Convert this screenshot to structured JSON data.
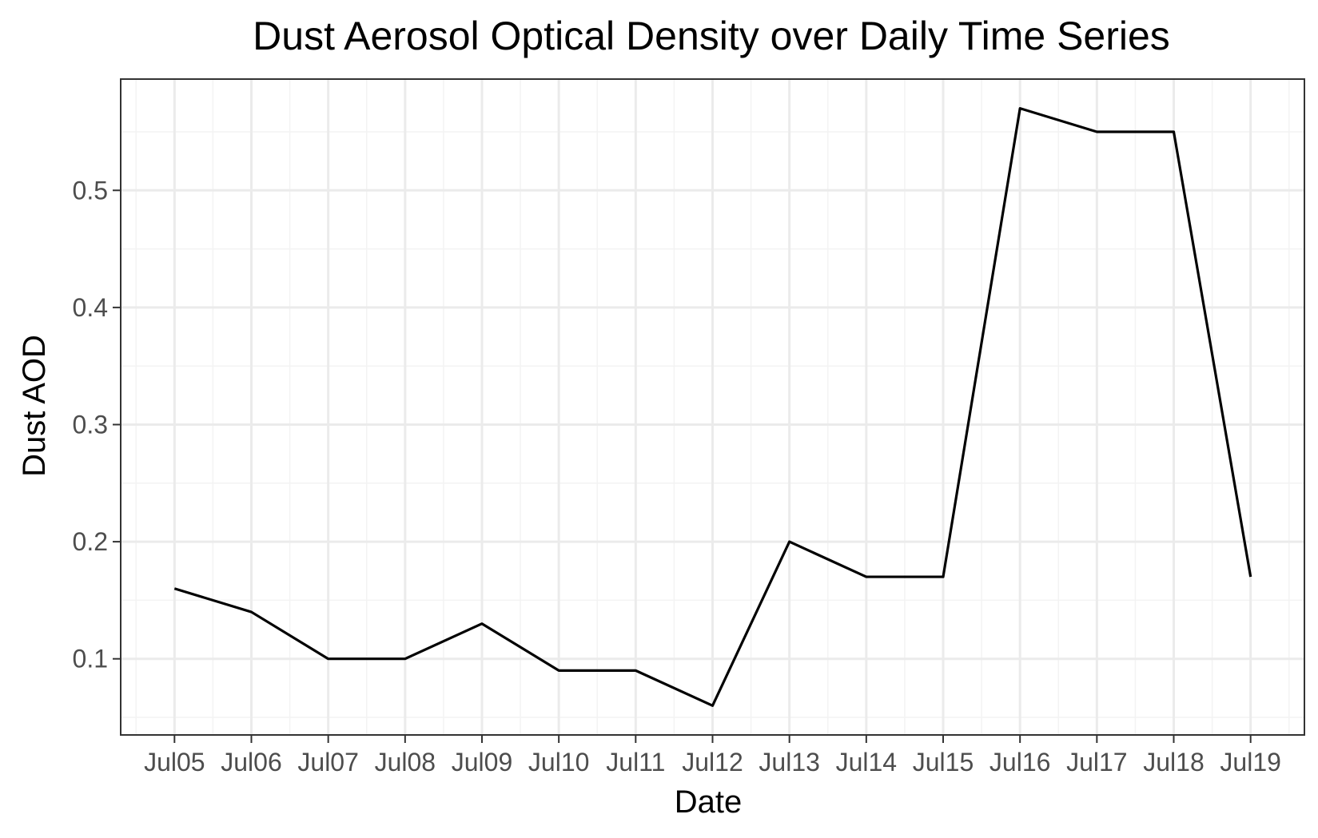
{
  "chart_data": {
    "type": "line",
    "title": "Dust Aerosol Optical Density over Daily Time Series",
    "xlabel": "Date",
    "ylabel": "Dust AOD",
    "categories": [
      "Jul05",
      "Jul06",
      "Jul07",
      "Jul08",
      "Jul09",
      "Jul10",
      "Jul11",
      "Jul12",
      "Jul13",
      "Jul14",
      "Jul15",
      "Jul16",
      "Jul17",
      "Jul18",
      "Jul19"
    ],
    "x_ticks": [
      "Jul05",
      "Jul06",
      "Jul07",
      "Jul08",
      "Jul09",
      "Jul10",
      "Jul11",
      "Jul12",
      "Jul13",
      "Jul14",
      "Jul15",
      "Jul16",
      "Jul17",
      "Jul18",
      "Jul19"
    ],
    "y_ticks": [
      0.1,
      0.2,
      0.3,
      0.4,
      0.5
    ],
    "y_tick_labels": [
      "0.1",
      "0.2",
      "0.3",
      "0.4",
      "0.5"
    ],
    "ylim": [
      0.035,
      0.595
    ],
    "grid": true,
    "series": [
      {
        "values": [
          0.16,
          0.14,
          0.1,
          0.1,
          0.13,
          0.09,
          0.09,
          0.06,
          0.2,
          0.17,
          0.17,
          0.57,
          0.55,
          0.55,
          0.17
        ]
      }
    ],
    "colors": {
      "line": "#000000",
      "grid_major": "#ebebeb",
      "grid_minor": "#f3f3f3",
      "panel_border": "#333333",
      "tick_text": "#4d4d4d"
    }
  }
}
